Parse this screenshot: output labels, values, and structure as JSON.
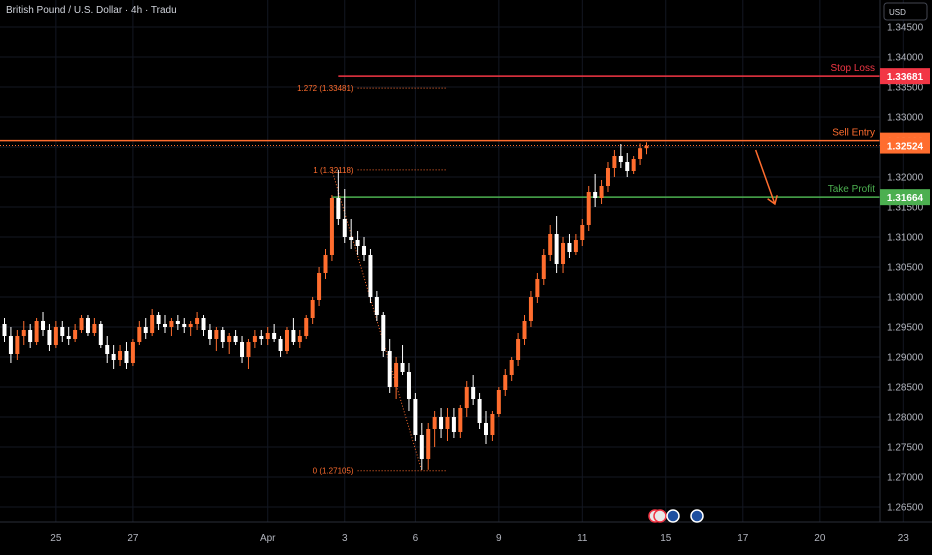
{
  "header": {
    "symbol_title": "British Pound / U.S. Dollar · 4h · Tradu"
  },
  "currency": "USD",
  "chart_data": {
    "type": "candlestick",
    "ylim": [
      1.2625,
      1.3495
    ],
    "y_ticks": [
      "1.34500",
      "1.34000",
      "1.33500",
      "1.33000",
      "1.32500",
      "1.32000",
      "1.31500",
      "1.31000",
      "1.30500",
      "1.30000",
      "1.29500",
      "1.29000",
      "1.28500",
      "1.28000",
      "1.27500",
      "1.27000",
      "1.26500"
    ],
    "y_tick_values": [
      1.345,
      1.34,
      1.335,
      1.33,
      1.325,
      1.32,
      1.315,
      1.31,
      1.305,
      1.3,
      1.295,
      1.29,
      1.285,
      1.28,
      1.275,
      1.27,
      1.265
    ],
    "x_labels": [
      "25",
      "27",
      "Apr",
      "3",
      "6",
      "9",
      "11",
      "15",
      "17",
      "20",
      "23"
    ],
    "x_label_index": [
      8,
      20,
      41,
      53,
      64,
      77,
      90,
      103,
      115,
      127,
      140
    ],
    "levels": [
      {
        "label": "Stop Loss",
        "value": 1.33681,
        "value_text": "1.33681",
        "color": "#f23645"
      },
      {
        "label": "Sell Entry",
        "value": 1.32606,
        "value_text": "1.32606",
        "color": "#ff6d2e"
      },
      {
        "label": "Take Profit",
        "value": 1.31664,
        "value_text": "1.31664",
        "color": "#4caf50"
      }
    ],
    "last_price": {
      "value": 1.32524,
      "value_text": "1.32524",
      "color": "#ff6d2e"
    },
    "fib_levels": [
      {
        "label": "1.272 (1.33481)",
        "value": 1.33481
      },
      {
        "label": "1 (1.32118)",
        "value": 1.32118
      },
      {
        "label": "0 (1.27105)",
        "value": 1.27105
      }
    ],
    "fib_start_index": 55,
    "fib_end_index": 69,
    "arrow": {
      "from_index": 117,
      "from_value": 1.3245,
      "to_index": 120,
      "to_value": 1.3155
    },
    "colors": {
      "up": "#ff6d2e",
      "down": "#ffffff",
      "grid": "#131722",
      "fib": "#ff6d2e"
    },
    "candles": [
      [
        1.2955,
        1.2965,
        1.2925,
        1.2935
      ],
      [
        1.2935,
        1.295,
        1.289,
        1.2905
      ],
      [
        1.2905,
        1.2945,
        1.2895,
        1.2935
      ],
      [
        1.2935,
        1.296,
        1.292,
        1.2945
      ],
      [
        1.2945,
        1.2955,
        1.2915,
        1.2925
      ],
      [
        1.2925,
        1.2965,
        1.292,
        1.296
      ],
      [
        1.296,
        1.2975,
        1.2935,
        1.2945
      ],
      [
        1.2945,
        1.2955,
        1.291,
        1.292
      ],
      [
        1.292,
        1.296,
        1.2915,
        1.295
      ],
      [
        1.295,
        1.296,
        1.2925,
        1.2935
      ],
      [
        1.2935,
        1.295,
        1.292,
        1.293
      ],
      [
        1.293,
        1.2955,
        1.2925,
        1.2945
      ],
      [
        1.2945,
        1.297,
        1.294,
        1.2965
      ],
      [
        1.2965,
        1.297,
        1.2935,
        1.294
      ],
      [
        1.294,
        1.2965,
        1.2935,
        1.2955
      ],
      [
        1.2955,
        1.296,
        1.2915,
        1.292
      ],
      [
        1.292,
        1.2935,
        1.289,
        1.2905
      ],
      [
        1.2905,
        1.292,
        1.288,
        1.2895
      ],
      [
        1.2895,
        1.292,
        1.2885,
        1.291
      ],
      [
        1.291,
        1.2925,
        1.288,
        1.289
      ],
      [
        1.289,
        1.293,
        1.2885,
        1.2925
      ],
      [
        1.2925,
        1.296,
        1.292,
        1.295
      ],
      [
        1.295,
        1.2965,
        1.293,
        1.294
      ],
      [
        1.294,
        1.298,
        1.2935,
        1.297
      ],
      [
        1.297,
        1.2975,
        1.2945,
        1.2955
      ],
      [
        1.2955,
        1.297,
        1.294,
        1.295
      ],
      [
        1.295,
        1.2965,
        1.2935,
        1.296
      ],
      [
        1.296,
        1.297,
        1.2945,
        1.2955
      ],
      [
        1.2955,
        1.2965,
        1.294,
        1.295
      ],
      [
        1.295,
        1.296,
        1.2935,
        1.2955
      ],
      [
        1.2955,
        1.2975,
        1.2945,
        1.2965
      ],
      [
        1.2965,
        1.297,
        1.2935,
        1.2945
      ],
      [
        1.2945,
        1.2955,
        1.292,
        1.293
      ],
      [
        1.293,
        1.295,
        1.291,
        1.2945
      ],
      [
        1.2945,
        1.295,
        1.2915,
        1.2925
      ],
      [
        1.2925,
        1.294,
        1.2905,
        1.2935
      ],
      [
        1.2935,
        1.2945,
        1.292,
        1.2925
      ],
      [
        1.2925,
        1.2935,
        1.289,
        1.29
      ],
      [
        1.29,
        1.293,
        1.288,
        1.2925
      ],
      [
        1.2925,
        1.2945,
        1.2915,
        1.2935
      ],
      [
        1.2935,
        1.2945,
        1.292,
        1.293
      ],
      [
        1.293,
        1.295,
        1.292,
        1.294
      ],
      [
        1.294,
        1.2955,
        1.2925,
        1.293
      ],
      [
        1.293,
        1.2935,
        1.29,
        1.291
      ],
      [
        1.291,
        1.295,
        1.2905,
        1.2945
      ],
      [
        1.2945,
        1.2965,
        1.292,
        1.2925
      ],
      [
        1.2925,
        1.2945,
        1.2915,
        1.2935
      ],
      [
        1.2935,
        1.297,
        1.293,
        1.2965
      ],
      [
        1.2965,
        1.3,
        1.2955,
        1.2995
      ],
      [
        1.2995,
        1.305,
        1.2985,
        1.304
      ],
      [
        1.304,
        1.308,
        1.303,
        1.307
      ],
      [
        1.307,
        1.317,
        1.306,
        1.3165
      ],
      [
        1.3165,
        1.3212,
        1.312,
        1.313
      ],
      [
        1.313,
        1.318,
        1.309,
        1.31
      ],
      [
        1.31,
        1.313,
        1.308,
        1.3095
      ],
      [
        1.3095,
        1.311,
        1.307,
        1.3085
      ],
      [
        1.3085,
        1.31,
        1.306,
        1.307
      ],
      [
        1.307,
        1.308,
        1.299,
        1.3
      ],
      [
        1.3,
        1.301,
        1.296,
        1.297
      ],
      [
        1.297,
        1.2975,
        1.29,
        1.291
      ],
      [
        1.291,
        1.293,
        1.284,
        1.285
      ],
      [
        1.285,
        1.29,
        1.283,
        1.289
      ],
      [
        1.289,
        1.292,
        1.287,
        1.2875
      ],
      [
        1.2875,
        1.289,
        1.281,
        1.283
      ],
      [
        1.283,
        1.284,
        1.276,
        1.277
      ],
      [
        1.277,
        1.279,
        1.2712,
        1.273
      ],
      [
        1.273,
        1.279,
        1.2712,
        1.278
      ],
      [
        1.278,
        1.281,
        1.275,
        1.28
      ],
      [
        1.28,
        1.2815,
        1.2765,
        1.278
      ],
      [
        1.278,
        1.2815,
        1.276,
        1.28
      ],
      [
        1.28,
        1.2815,
        1.2765,
        1.2775
      ],
      [
        1.2775,
        1.282,
        1.2765,
        1.2815
      ],
      [
        1.2815,
        1.286,
        1.28,
        1.285
      ],
      [
        1.285,
        1.287,
        1.282,
        1.283
      ],
      [
        1.283,
        1.284,
        1.278,
        1.279
      ],
      [
        1.279,
        1.281,
        1.2755,
        1.277
      ],
      [
        1.277,
        1.281,
        1.276,
        1.2805
      ],
      [
        1.2805,
        1.285,
        1.28,
        1.2845
      ],
      [
        1.2845,
        1.288,
        1.2835,
        1.287
      ],
      [
        1.287,
        1.29,
        1.286,
        1.2895
      ],
      [
        1.2895,
        1.294,
        1.2885,
        1.293
      ],
      [
        1.293,
        1.297,
        1.292,
        1.296
      ],
      [
        1.296,
        1.301,
        1.295,
        1.3
      ],
      [
        1.3,
        1.304,
        1.299,
        1.303
      ],
      [
        1.303,
        1.308,
        1.302,
        1.307
      ],
      [
        1.307,
        1.312,
        1.306,
        1.3105
      ],
      [
        1.3105,
        1.3135,
        1.304,
        1.3055
      ],
      [
        1.3055,
        1.31,
        1.304,
        1.309
      ],
      [
        1.309,
        1.3105,
        1.3065,
        1.3075
      ],
      [
        1.3075,
        1.3105,
        1.307,
        1.3095
      ],
      [
        1.3095,
        1.313,
        1.3085,
        1.312
      ],
      [
        1.312,
        1.3185,
        1.311,
        1.3175
      ],
      [
        1.3175,
        1.3205,
        1.315,
        1.3165
      ],
      [
        1.3165,
        1.3195,
        1.3155,
        1.3185
      ],
      [
        1.3185,
        1.3225,
        1.3175,
        1.3215
      ],
      [
        1.3215,
        1.3245,
        1.32,
        1.3235
      ],
      [
        1.3235,
        1.3255,
        1.3215,
        1.3225
      ],
      [
        1.3225,
        1.324,
        1.32,
        1.321
      ],
      [
        1.321,
        1.3235,
        1.3205,
        1.323
      ],
      [
        1.323,
        1.3256,
        1.322,
        1.3248
      ],
      [
        1.3248,
        1.3258,
        1.3238,
        1.3252
      ]
    ]
  }
}
